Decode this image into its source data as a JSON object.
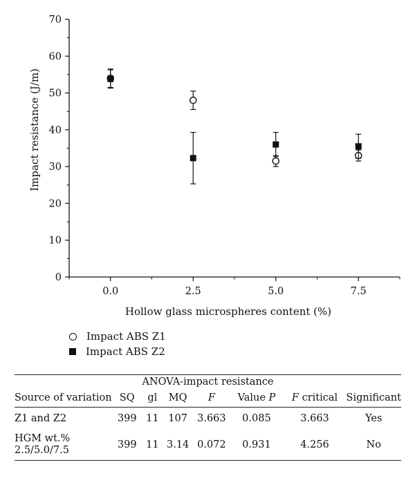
{
  "chart_data": {
    "type": "scatter",
    "ylabel": "Impact resistance (J/m)",
    "xlabel": "Hollow glass microspheres content (%)",
    "x_ticks": [
      "0.0",
      "2.5",
      "5.0",
      "7.5"
    ],
    "y_ticks": [
      "0",
      "10",
      "20",
      "30",
      "40",
      "50",
      "60",
      "70"
    ],
    "xlim": [
      -1.25,
      8.75
    ],
    "ylim": [
      0,
      70
    ],
    "grid": false,
    "legend_position": "bottom-left",
    "series": [
      {
        "name": "Impact ABS Z1",
        "marker": "open-circle",
        "x": [
          0.0,
          2.5,
          5.0,
          7.5
        ],
        "y": [
          54,
          48,
          31.5,
          33
        ],
        "err": [
          2.5,
          2.5,
          1.5,
          1.5
        ]
      },
      {
        "name": "Impact ABS Z2",
        "marker": "filled-square",
        "x": [
          0.0,
          2.5,
          5.0,
          7.5
        ],
        "y": [
          53.8,
          32.3,
          36,
          35.5
        ],
        "err": [
          2.5,
          7,
          3.3,
          3.3
        ]
      }
    ]
  },
  "table": {
    "caption": "ANOVA-impact resistance",
    "headers": [
      "Source of variation",
      "SQ",
      "gl",
      "MQ",
      "F",
      "Value",
      "P",
      "F",
      "critical",
      "Significant"
    ],
    "rows": [
      {
        "source": "Z1 and Z2",
        "sq": "399",
        "gl": "11",
        "mq": "107",
        "f": "3.663",
        "p": "0.085",
        "fcrit": "3.663",
        "sig": "Yes"
      },
      {
        "source": "HGM wt.%",
        "source2": "2.5/5.0/7.5",
        "sq": "399",
        "gl": "11",
        "mq": "3.14",
        "f": "0.072",
        "p": "0.931",
        "fcrit": "4.256",
        "sig": "No"
      }
    ]
  },
  "colors": {
    "ink": "#111111",
    "background": "#ffffff"
  }
}
